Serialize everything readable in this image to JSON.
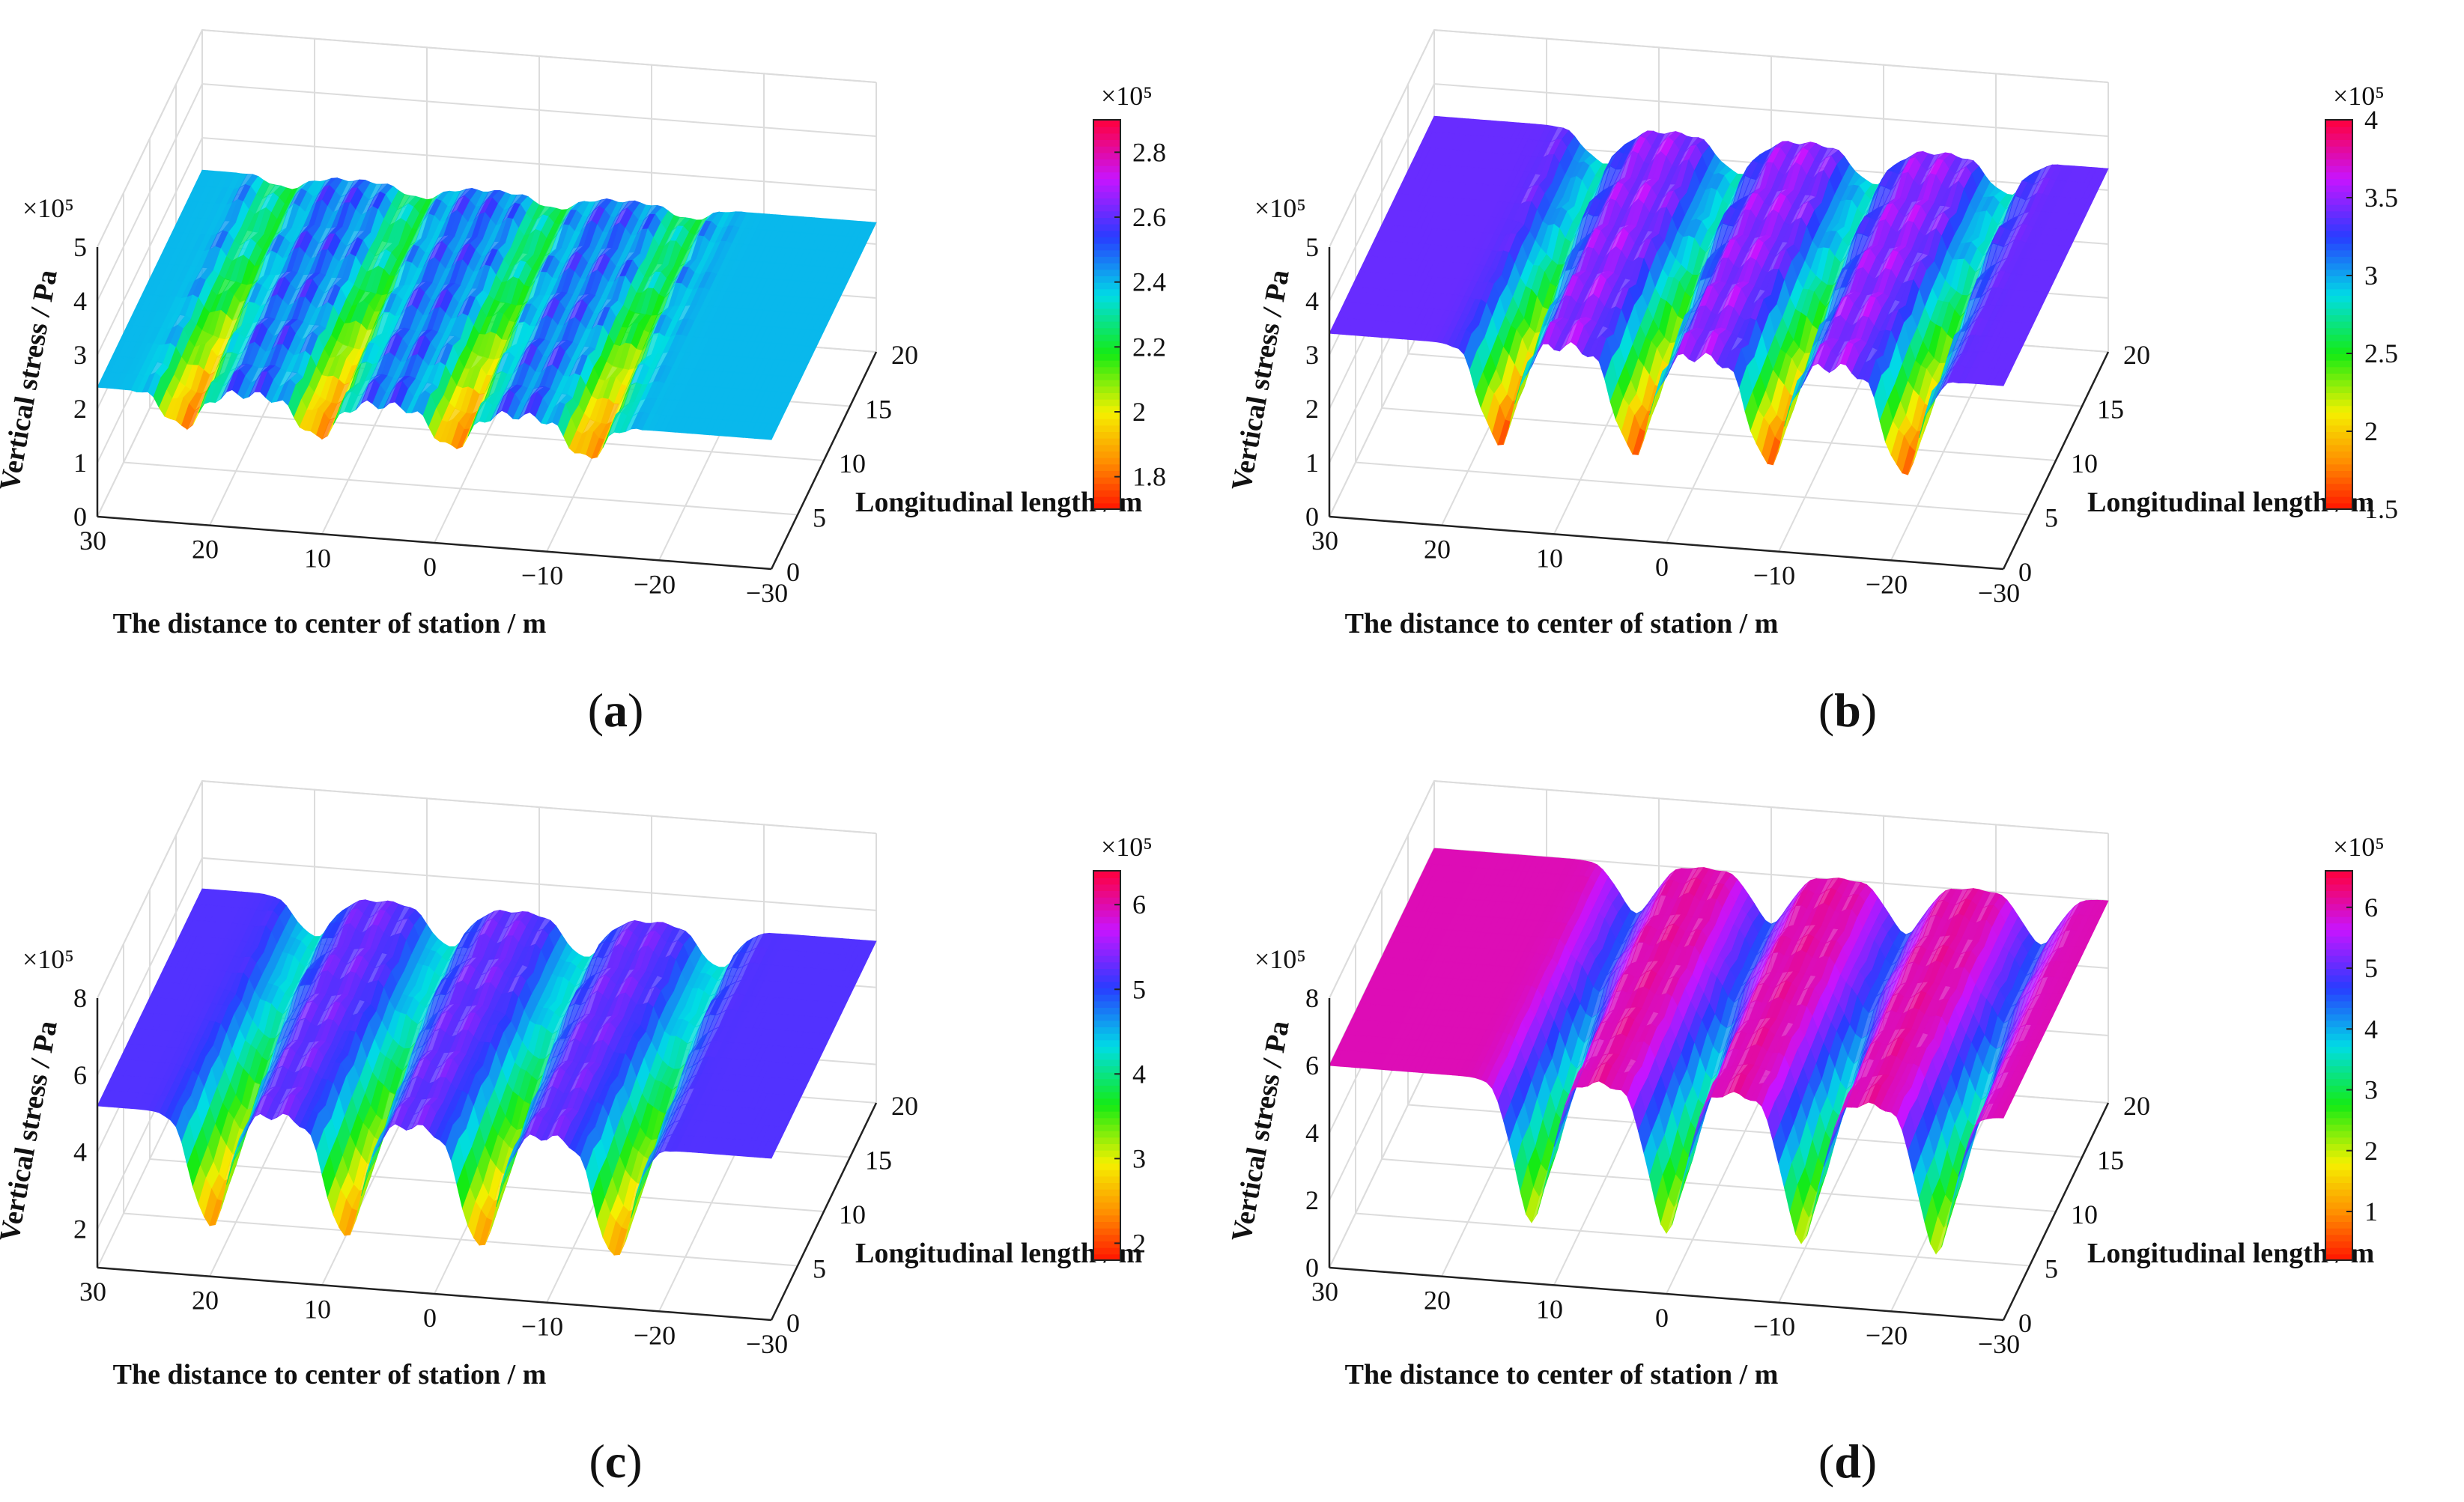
{
  "figure": {
    "panels": [
      {
        "caption_letter": "a",
        "caption_open": "(",
        "caption_close": ")"
      },
      {
        "caption_letter": "b",
        "caption_open": "(",
        "caption_close": ")"
      },
      {
        "caption_letter": "c",
        "caption_open": "(",
        "caption_close": ")"
      },
      {
        "caption_letter": "d",
        "caption_open": "(",
        "caption_close": ")"
      }
    ]
  },
  "chart_data": [
    {
      "type": "surface",
      "panel": "a",
      "xlabel": "The distance to center of station / m",
      "ylabel": "Longitudinal length / m",
      "zlabel": "Vertical stress / Pa",
      "zscale": "×10⁵",
      "x_ticks": [
        "30",
        "20",
        "10",
        "0",
        "−10",
        "−20",
        "−30"
      ],
      "y_ticks": [
        "0",
        "5",
        "10",
        "15",
        "20"
      ],
      "z_ticks": [
        "0",
        "1",
        "2",
        "3",
        "4",
        "5"
      ],
      "zlim": [
        0,
        5
      ],
      "xlim": [
        30,
        -30
      ],
      "ylim": [
        0,
        20
      ],
      "baseline": 2.4,
      "colorbar": {
        "scale": "×10⁵",
        "ticks": [
          "1.8",
          "2",
          "2.2",
          "2.4",
          "2.6",
          "2.8"
        ],
        "range": [
          1.7,
          2.9
        ],
        "colormap": "jet-reversed"
      },
      "troughs_x": [
        22.5,
        10.5,
        -1.5,
        -13.5
      ],
      "trough_min": 1.7,
      "peak_max": 2.9
    },
    {
      "type": "surface",
      "panel": "b",
      "xlabel": "The distance to center of station / m",
      "ylabel": "Longitudinal length / m",
      "zlabel": "Vertical stress / Pa",
      "zscale": "×10⁵",
      "x_ticks": [
        "30",
        "20",
        "10",
        "0",
        "−10",
        "−20",
        "−30"
      ],
      "y_ticks": [
        "0",
        "5",
        "10",
        "15",
        "20"
      ],
      "z_ticks": [
        "0",
        "1",
        "2",
        "3",
        "4",
        "5"
      ],
      "zlim": [
        0,
        5
      ],
      "xlim": [
        30,
        -30
      ],
      "ylim": [
        0,
        20
      ],
      "baseline": 3.4,
      "colorbar": {
        "scale": "×10⁵",
        "ticks": [
          "1.5",
          "2",
          "2.5",
          "3",
          "3.5",
          "4"
        ],
        "range": [
          1.5,
          4
        ],
        "colormap": "jet-reversed"
      },
      "troughs_x": [
        15,
        3,
        -9,
        -21
      ],
      "trough_min": 1.5,
      "peak_max": 4.0
    },
    {
      "type": "surface",
      "panel": "c",
      "xlabel": "The distance to center of station / m",
      "ylabel": "Longitudinal length / m",
      "zlabel": "Vertical stress / Pa",
      "zscale": "×10⁵",
      "x_ticks": [
        "30",
        "20",
        "10",
        "0",
        "−10",
        "−20",
        "−30"
      ],
      "y_ticks": [
        "0",
        "5",
        "10",
        "15",
        "20"
      ],
      "z_ticks": [
        "2",
        "4",
        "6",
        "8"
      ],
      "zlim": [
        1,
        8
      ],
      "xlim": [
        30,
        -30
      ],
      "ylim": [
        0,
        20
      ],
      "baseline": 5.2,
      "colorbar": {
        "scale": "×10⁵",
        "ticks": [
          "2",
          "3",
          "4",
          "5",
          "6"
        ],
        "range": [
          1.8,
          6.4
        ],
        "colormap": "jet-reversed"
      },
      "troughs_x": [
        20,
        8,
        -4,
        -16
      ],
      "trough_min": 2.2,
      "peak_max": 5.8
    },
    {
      "type": "surface",
      "panel": "d",
      "xlabel": "The distance to center of station / m",
      "ylabel": "Longitudinal length / m",
      "zlabel": "Vertical stress / Pa",
      "zscale": "×10⁵",
      "x_ticks": [
        "30",
        "20",
        "10",
        "0",
        "−10",
        "−20",
        "−30"
      ],
      "y_ticks": [
        "0",
        "5",
        "10",
        "15",
        "20"
      ],
      "z_ticks": [
        "0",
        "2",
        "4",
        "6",
        "8"
      ],
      "zlim": [
        0,
        8
      ],
      "xlim": [
        30,
        -30
      ],
      "ylim": [
        0,
        20
      ],
      "baseline": 6.0,
      "colorbar": {
        "scale": "×10⁵",
        "ticks": [
          "1",
          "2",
          "3",
          "4",
          "5",
          "6"
        ],
        "range": [
          0.2,
          6.6
        ],
        "colormap": "jet-reversed"
      },
      "troughs_x": [
        12,
        0,
        -12,
        -24
      ],
      "trough_min": 1.8,
      "peak_max": 6.5
    }
  ]
}
